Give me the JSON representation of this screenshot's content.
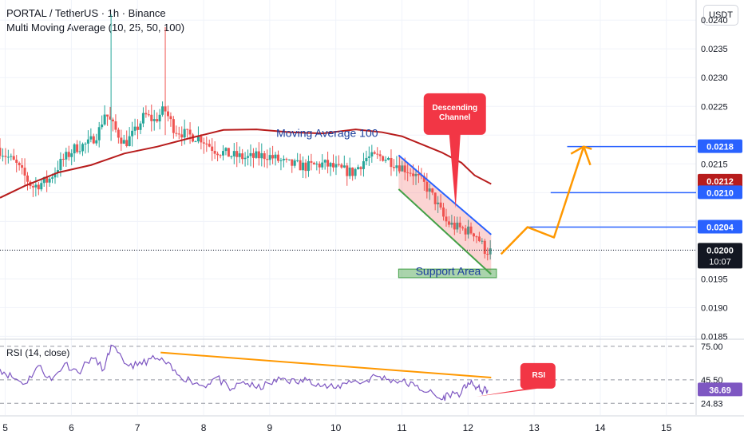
{
  "header": {
    "symbol": "PORTAL / TetherUS · 1h · Binance",
    "indicator": "Multi Moving Average (10, 25, 50, 100)",
    "currency_button": "USDT"
  },
  "colors": {
    "up": "#26a69a",
    "down": "#ef5350",
    "ma100": "#b71c1c",
    "channel_blue": "#2962ff",
    "support_green": "#43a047",
    "orange": "#ff9800",
    "rsi_line": "#7e57c2",
    "callout_red": "#f23645"
  },
  "chart_data": [
    {
      "type": "line",
      "subtype": "candlestick",
      "title": "PORTAL / TetherUS · 1h · Binance",
      "y_axis_ticks": [
        "0.0240",
        "0.0235",
        "0.0230",
        "0.0225",
        "0.0215",
        "0.0195",
        "0.0190",
        "0.0185"
      ],
      "ylim": [
        0.01845,
        0.02435
      ],
      "x_axis_ticks": [
        "5",
        "6",
        "7",
        "8",
        "9",
        "10",
        "11",
        "12",
        "13",
        "14",
        "15"
      ],
      "xlim": [
        4.92,
        15.45
      ],
      "series": [
        {
          "name": "Moving Average 100",
          "x": [
            4.92,
            5.3,
            5.8,
            6.3,
            6.8,
            7.3,
            7.8,
            8.3,
            8.8,
            9.3,
            9.8,
            10.3,
            10.7,
            11.0,
            11.3,
            11.6,
            11.9,
            12.1,
            12.35
          ],
          "y": [
            0.02091,
            0.02112,
            0.02135,
            0.02148,
            0.02168,
            0.0218,
            0.02195,
            0.02209,
            0.0221,
            0.02205,
            0.02203,
            0.0221,
            0.02205,
            0.02198,
            0.02184,
            0.0217,
            0.02152,
            0.0213,
            0.02115
          ]
        }
      ],
      "price_labels": [
        {
          "value": "0.0218",
          "color": "#2962ff"
        },
        {
          "value": "0.0212",
          "color": "#b71c1c"
        },
        {
          "value": "0.0210",
          "color": "#2962ff"
        },
        {
          "value": "0.0204",
          "color": "#2962ff"
        },
        {
          "value": "0.0200",
          "subtext": "10:07",
          "color": "#131722"
        }
      ],
      "horizontal_levels": [
        {
          "y": 0.0218,
          "x_start": 13.5
        },
        {
          "y": 0.021,
          "x_start": 13.25
        },
        {
          "y": 0.0204,
          "x_start": 12.9
        }
      ],
      "current_price_line": 0.02,
      "channel": {
        "upper": [
          [
            10.95,
            0.02165
          ],
          [
            12.35,
            0.02027
          ]
        ],
        "lower": [
          [
            10.95,
            0.02106
          ],
          [
            12.35,
            0.01958
          ]
        ]
      },
      "support_zone": {
        "x": [
          10.95,
          12.43
        ],
        "y": [
          0.01952,
          0.01967
        ]
      },
      "projection": {
        "x": [
          12.5,
          12.9,
          13.3,
          13.75
        ],
        "y": [
          0.01993,
          0.0204,
          0.02022,
          0.0218
        ],
        "tail": [
          13.85,
          0.02148
        ]
      },
      "annotations": [
        {
          "text": "Moving Average 100",
          "x": 9.1,
          "y": 0.02197
        },
        {
          "text": "Descending",
          "line2": "Channel",
          "x": 11.8,
          "y": 0.0222
        },
        {
          "text": "Support Area",
          "x": 11.7,
          "y": 0.01962
        }
      ]
    },
    {
      "type": "line",
      "title": "RSI (14, close)",
      "y_axis_ticks": [
        "75.00",
        "45.50",
        "24.83"
      ],
      "current_value": "36.69",
      "series": [
        {
          "name": "RSI",
          "x": [
            4.92,
            5.1,
            5.3,
            5.5,
            5.7,
            5.9,
            6.1,
            6.3,
            6.5,
            6.6,
            6.8,
            7.0,
            7.2,
            7.4,
            7.6,
            7.8,
            8.0,
            8.2,
            8.4,
            8.6,
            8.8,
            9.0,
            9.2,
            9.4,
            9.6,
            9.8,
            10.0,
            10.2,
            10.4,
            10.6,
            10.8,
            11.0,
            11.2,
            11.4,
            11.6,
            11.7,
            11.9,
            12.0,
            12.1,
            12.2,
            12.3
          ],
          "y": [
            55,
            48,
            42,
            58,
            45,
            60,
            52,
            65,
            55,
            76,
            60,
            58,
            64,
            62,
            50,
            45,
            40,
            48,
            36,
            44,
            38,
            42,
            47,
            43,
            46,
            40,
            38,
            45,
            43,
            49,
            46,
            44,
            40,
            35,
            28,
            33,
            34,
            43,
            40,
            36,
            36.69
          ]
        }
      ],
      "trendline": {
        "x": [
          7.35,
          12.35
        ],
        "y": [
          69.5,
          47.5
        ]
      },
      "annotations": [
        {
          "text": "RSI",
          "x": 12.9,
          "y": 49
        }
      ]
    }
  ]
}
